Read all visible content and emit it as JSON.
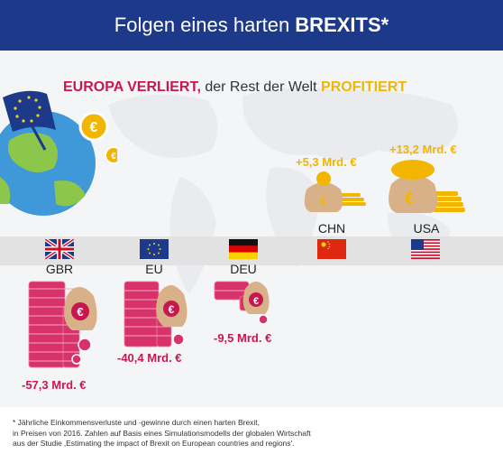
{
  "header": {
    "title_regular": "Folgen eines harten",
    "title_bold": "BREXITS*"
  },
  "subtitle": {
    "loss": "EUROPA VERLIERT,",
    "middle": "der Rest der Welt",
    "gain": "PROFITIERT"
  },
  "winners": [
    {
      "country": "CHN",
      "value": "+5,3 Mrd. €"
    },
    {
      "country": "USA",
      "value": "+13,2 Mrd. €"
    }
  ],
  "losers": [
    {
      "country": "GBR",
      "value": "-57,3 Mrd. €"
    },
    {
      "country": "EU",
      "value": "-40,4 Mrd. €"
    },
    {
      "country": "DEU",
      "value": "-9,5 Mrd. €"
    }
  ],
  "footnote": {
    "line1": "* Jährliche Einkommensverluste und -gewinne durch einen harten Brexit,",
    "line2": "in Preisen von 2016. Zahlen auf Basis eines Simulationsmodells der globalen Wirtschaft",
    "line3": "aus der Studie ‚Estimating the impact of Brexit on European countries and regions'."
  },
  "colors": {
    "header_bg": "#1d3a8a",
    "loss": "#c8174f",
    "gain": "#f2b600"
  },
  "icons": [
    "globe-icon",
    "eu-flag-icon",
    "euro-coin-icon",
    "money-bag-icon"
  ]
}
